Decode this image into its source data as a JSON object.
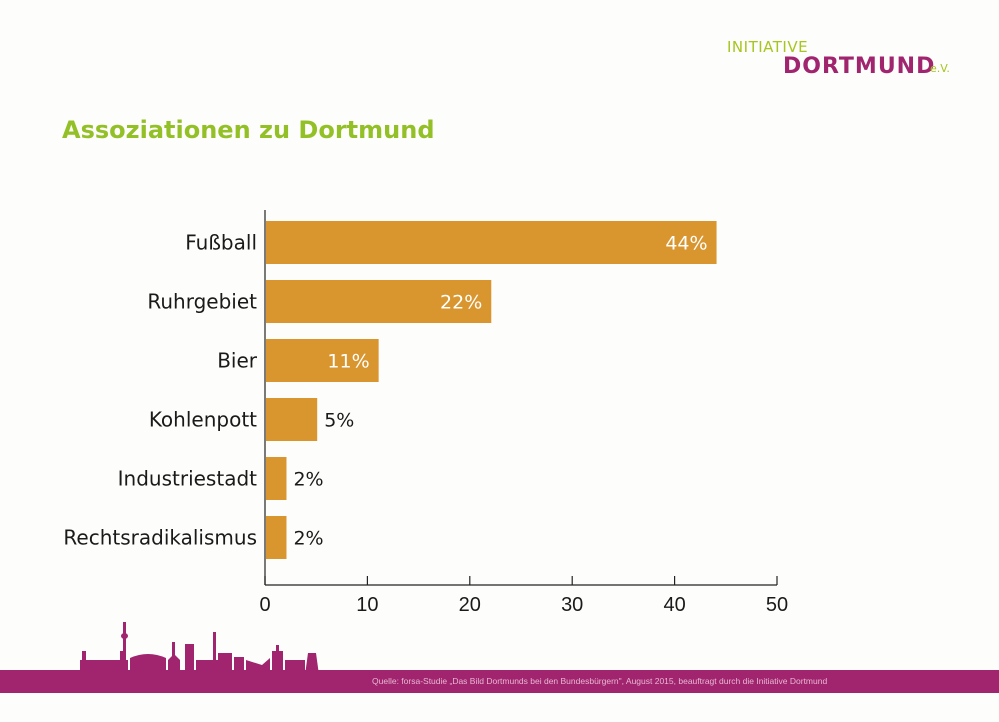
{
  "logo": {
    "line1": "INITIATIVE",
    "line2": "DORTMUND",
    "suffix": "e.V."
  },
  "title": "Assoziationen zu Dortmund",
  "footer": {
    "source": "Quelle: forsa-Studie „Das Bild Dortmunds bei den Bundesbürgern\", August 2015, beauftragt durch die Initiative Dortmund"
  },
  "colors": {
    "bar": "#d9962f",
    "title": "#94c027",
    "brand_magenta": "#a0246e",
    "brand_green": "#a7c520"
  },
  "chart_data": {
    "type": "bar",
    "orientation": "horizontal",
    "title": "Assoziationen zu Dortmund",
    "categories": [
      "Fußball",
      "Ruhrgebiet",
      "Bier",
      "Kohlenpott",
      "Industriestadt",
      "Rechtsradikalismus"
    ],
    "values": [
      44,
      22,
      11,
      5,
      2,
      2
    ],
    "data_labels": [
      "44%",
      "22%",
      "11%",
      "5%",
      "2%",
      "2%"
    ],
    "xlim": [
      0,
      50
    ],
    "xticks": [
      0,
      10,
      20,
      30,
      40,
      50
    ],
    "xtick_labels": [
      "0",
      "10",
      "20",
      "30",
      "40",
      "50"
    ],
    "xlabel": "",
    "ylabel": "",
    "grid": false,
    "legend": "none"
  }
}
